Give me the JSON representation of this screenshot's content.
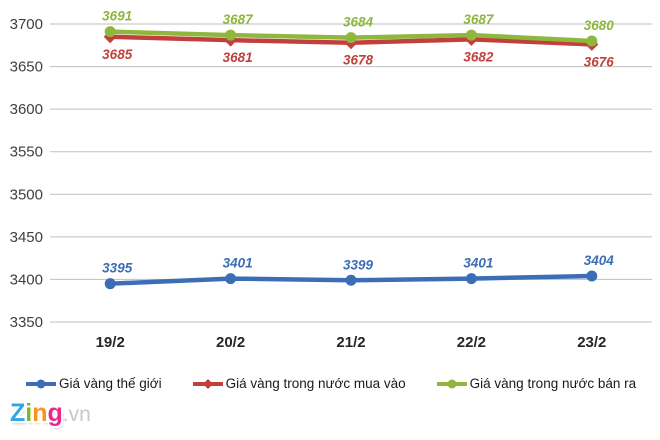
{
  "chart_data": {
    "type": "line",
    "title": "",
    "categories": [
      "19/2",
      "20/2",
      "21/2",
      "22/2",
      "23/2"
    ],
    "series": [
      {
        "name": "Giá vàng thế giới",
        "values": [
          3395,
          3401,
          3399,
          3401,
          3404
        ],
        "color": "#3D6EB5",
        "marker": "circle",
        "label_position": "above"
      },
      {
        "name": "Giá vàng trong nước mua vào",
        "values": [
          3685,
          3681,
          3678,
          3682,
          3676
        ],
        "color": "#C2403B",
        "marker": "diamond",
        "label_position": "below"
      },
      {
        "name": "Giá vàng trong nước bán ra",
        "values": [
          3691,
          3687,
          3684,
          3687,
          3680
        ],
        "color": "#8FB73E",
        "marker": "circle",
        "label_position": "above"
      }
    ],
    "ylim": [
      3350,
      3700
    ],
    "ytick_step": 50,
    "grid": "horizontal",
    "grid_color": "#BFBFBF",
    "axis_text_color": "#3F3F3F",
    "xlabel": "",
    "ylabel": "",
    "legend_position": "bottom"
  },
  "logo": {
    "letters": [
      {
        "char": "Z",
        "color": "#2FA8E1"
      },
      {
        "char": "i",
        "color": "#7AB929"
      },
      {
        "char": "n",
        "color": "#F7941D"
      },
      {
        "char": "g",
        "color": "#EC268F"
      }
    ],
    "suffix": ".vn",
    "suffix_color": "#C9C9C9"
  }
}
